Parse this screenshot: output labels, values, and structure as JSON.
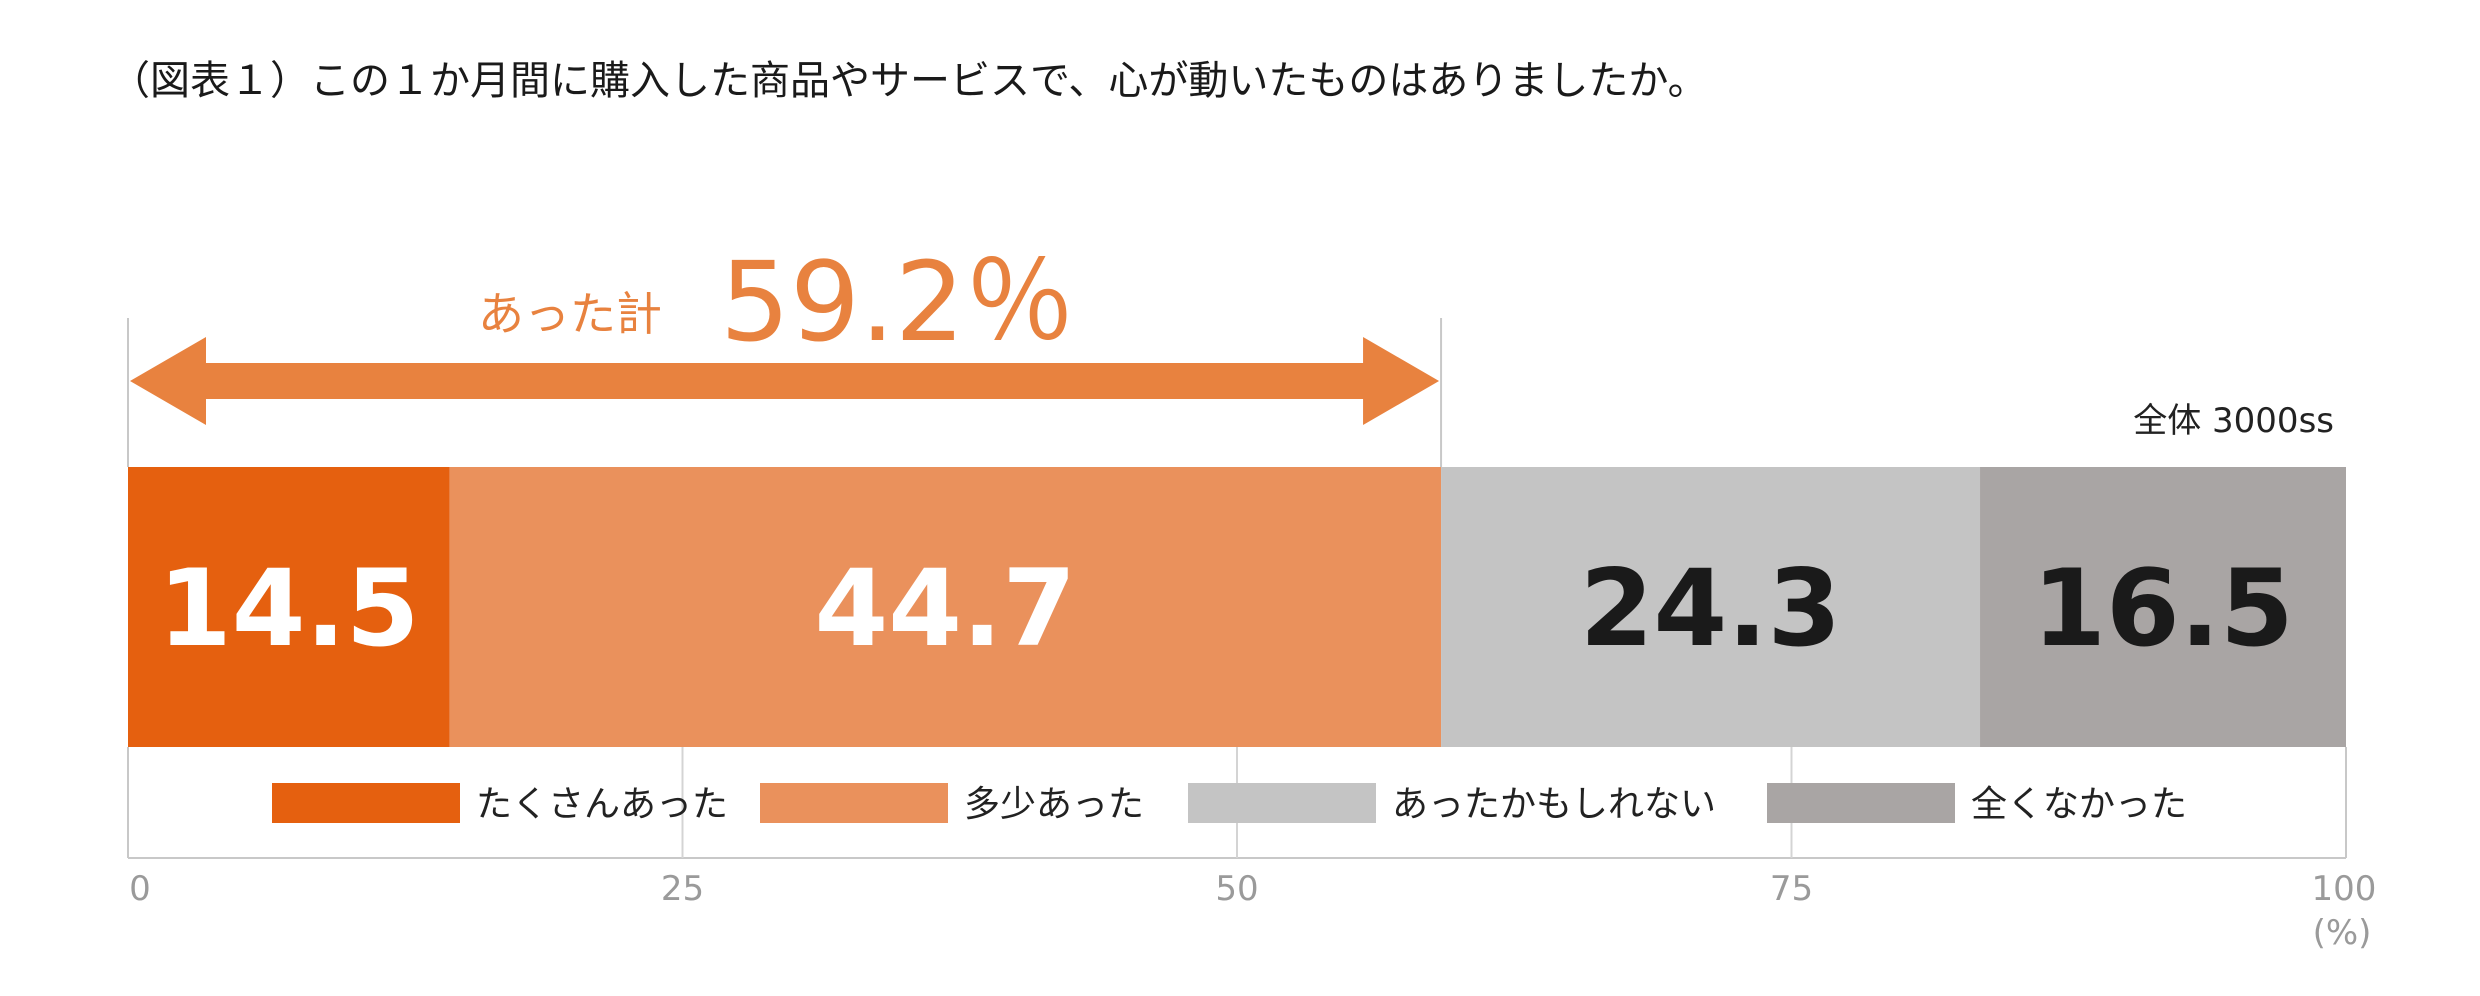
{
  "title": "（図表１）この１か月間に購入した商品やサービスで、心が動いたものはありましたか。",
  "chart_data": {
    "type": "bar",
    "orientation": "horizontal-stacked-100",
    "series": [
      {
        "name": "たくさんあった",
        "value": 14.5,
        "color": "#e5600f",
        "label_color": "#ffffff"
      },
      {
        "name": "多少あった",
        "value": 44.7,
        "color": "#ea915c",
        "label_color": "#ffffff"
      },
      {
        "name": "あったかもしれない",
        "value": 24.3,
        "color": "#c4c4c4",
        "label_color": "#1a1a1a"
      },
      {
        "name": "全くなかった",
        "value": 16.5,
        "color": "#a9a5a4",
        "label_color": "#1a1a1a"
      }
    ],
    "category_label": "全体 3000ss",
    "xlim": [
      0,
      100
    ],
    "xticks": [
      "0",
      "25",
      "50",
      "75",
      "100"
    ],
    "x_unit": "(%)",
    "callout": {
      "label": "あった計",
      "value": "59.2％",
      "from": 0,
      "to": 59.2,
      "color": "#e8823f"
    },
    "legend_position": "bottom"
  }
}
